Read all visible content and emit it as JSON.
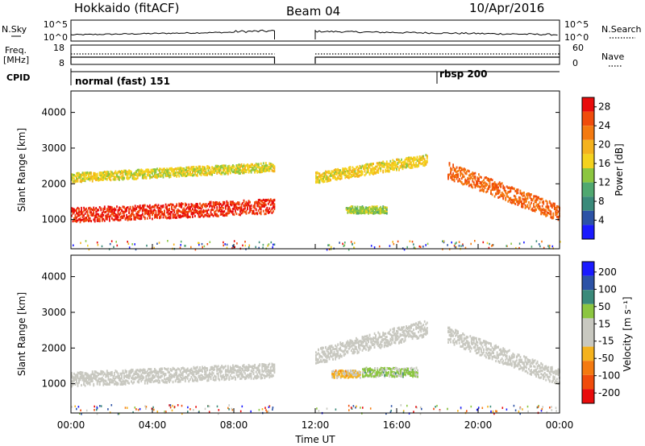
{
  "header": {
    "station": "Hokkaido (fitACF)",
    "beam": "Beam 04",
    "date": "10/Apr/2016"
  },
  "top_panels": {
    "nsky_label": "N.Sky",
    "nsearch_label": "N.Search",
    "nsky_ticks": [
      "10^5",
      "10^0"
    ],
    "nsearch_ticks": [
      "10^5",
      "10^0"
    ],
    "freq_label_1": "Freq.",
    "freq_label_2": "[MHz]",
    "freq_ticks": [
      "18",
      "8"
    ],
    "nave_label": "Nave",
    "nave_ticks": [
      "60",
      "0"
    ],
    "cpid_label": "CPID",
    "cpid_modes": [
      {
        "name": "normal (fast) 151",
        "start_hour": 0
      },
      {
        "name": "rbsp 200",
        "start_hour": 18
      }
    ]
  },
  "colors": {
    "power_scale": [
      "#1a1aff",
      "#2c52a6",
      "#3a8a7a",
      "#50a870",
      "#8cc640",
      "#f4d21e",
      "#f4b21e",
      "#f47a10",
      "#f04c0c",
      "#e80c0c"
    ],
    "velocity_scale": [
      "#e80c0c",
      "#f04c0c",
      "#f47a10",
      "#f4b21e",
      "#c8c8c0",
      "#c8c8c0",
      "#8cc640",
      "#3a8a7a",
      "#2c52a6",
      "#1a1aff"
    ]
  },
  "chart_data": [
    {
      "type": "heatmap",
      "panel": "power",
      "ylabel": "Slant Range [km]",
      "ylim": [
        180,
        4600
      ],
      "xlim": [
        0,
        24
      ],
      "yticks": [
        "1000",
        "2000",
        "3000",
        "4000"
      ],
      "colorbar_label": "Power [dB]",
      "colorbar_ticks": [
        "4",
        "8",
        "12",
        "16",
        "20",
        "24",
        "28"
      ],
      "colorbar_range": [
        0,
        30
      ],
      "data_gap_hours": [
        10.0,
        12.0
      ],
      "regions": [
        {
          "name": "main band",
          "x": [
            0,
            10
          ],
          "y_center": [
            1150,
            1400
          ],
          "thickness": 400,
          "value": 27
        },
        {
          "name": "upper band",
          "x": [
            0,
            10
          ],
          "y_center": [
            2200,
            2500
          ],
          "thickness": 250,
          "value": 16
        },
        {
          "name": "evening band",
          "x": [
            12,
            17.5
          ],
          "y_center": [
            2200,
            2700
          ],
          "thickness": 300,
          "value": 17
        },
        {
          "name": "dusk band",
          "x": [
            18.5,
            24
          ],
          "y_center": [
            2400,
            1200
          ],
          "thickness": 450,
          "value": 24
        },
        {
          "name": "mid echoes",
          "x": [
            13.5,
            15.5
          ],
          "y_center": [
            1300,
            1300
          ],
          "thickness": 200,
          "value": 14
        }
      ]
    },
    {
      "type": "heatmap",
      "panel": "velocity",
      "ylabel": "Slant Range [km]",
      "ylim": [
        180,
        4600
      ],
      "xlim": [
        0,
        24
      ],
      "yticks": [
        "1000",
        "2000",
        "3000",
        "4000"
      ],
      "colorbar_label": "Velocity [m s⁻¹]",
      "colorbar_ticks": [
        "200",
        "100",
        "50",
        "15",
        "-15",
        "-50",
        "-100",
        "-200"
      ],
      "colorbar_range": [
        -250,
        250
      ],
      "data_gap_hours": [
        10.0,
        12.0
      ],
      "regions": [
        {
          "name": "main band",
          "x": [
            0,
            10
          ],
          "y_center": [
            1150,
            1400
          ],
          "thickness": 400,
          "value": 0
        },
        {
          "name": "evening band",
          "x": [
            12,
            17.5
          ],
          "y_center": [
            1800,
            2600
          ],
          "thickness": 450,
          "value": 0
        },
        {
          "name": "dusk band",
          "x": [
            18.5,
            24
          ],
          "y_center": [
            2400,
            1200
          ],
          "thickness": 450,
          "value": 0
        },
        {
          "name": "eastward flow",
          "x": [
            14.3,
            17.0
          ],
          "y_center": [
            1350,
            1350
          ],
          "thickness": 250,
          "value": 60
        },
        {
          "name": "westward flow",
          "x": [
            12.8,
            14.2
          ],
          "y_center": [
            1300,
            1300
          ],
          "thickness": 200,
          "value": -60
        }
      ]
    }
  ],
  "x_axis": {
    "label": "Time UT",
    "ticks": [
      "00:00",
      "04:00",
      "08:00",
      "12:00",
      "16:00",
      "20:00",
      "00:00"
    ],
    "tick_hours": [
      0,
      4,
      8,
      12,
      16,
      20,
      24
    ]
  }
}
